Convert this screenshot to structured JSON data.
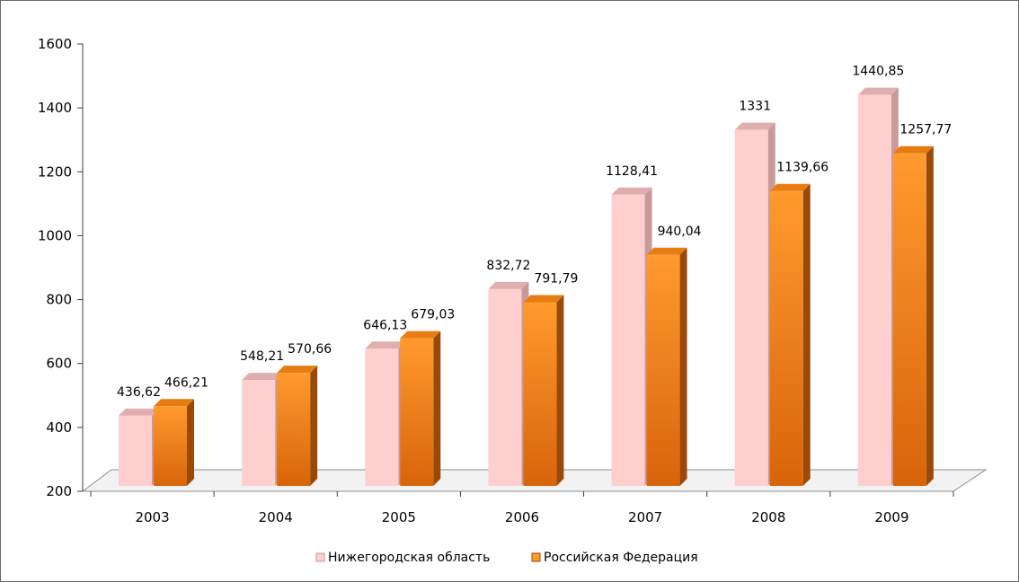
{
  "colors": {
    "series1_face": "#ffcfcf",
    "series1_side": "#c89a9a",
    "series1_top": "#dfaeae",
    "series2_face_top": "#ff9a2e",
    "series2_face_bottom": "#d8640a",
    "series2_side": "#9a4a08",
    "series2_top": "#e77d12",
    "axis": "#3f3f3f",
    "floor": "#f2f2f2"
  },
  "chart_data": {
    "type": "bar",
    "style": "3d-clustered-column",
    "categories": [
      "2003",
      "2004",
      "2005",
      "2006",
      "2007",
      "2008",
      "2009"
    ],
    "series": [
      {
        "name": "Нижегородская область",
        "values": [
          436.62,
          548.21,
          646.13,
          832.72,
          1128.41,
          1331,
          1440.85
        ],
        "labels": [
          "436,62",
          "548,21",
          "646,13",
          "832,72",
          "1128,41",
          "1331",
          "1440,85"
        ]
      },
      {
        "name": "Российская Федерация",
        "values": [
          466.21,
          570.66,
          679.03,
          791.79,
          940.04,
          1139.66,
          1257.77
        ],
        "labels": [
          "466,21",
          "570,66",
          "679,03",
          "791,79",
          "940,04",
          "1139,66",
          "1257,77"
        ]
      }
    ],
    "ylim": [
      200,
      1600
    ],
    "yticks": [
      200,
      400,
      600,
      800,
      1000,
      1200,
      1400,
      1600
    ],
    "title": "",
    "xlabel": "",
    "ylabel": "",
    "grid": false,
    "legend_position": "bottom"
  }
}
